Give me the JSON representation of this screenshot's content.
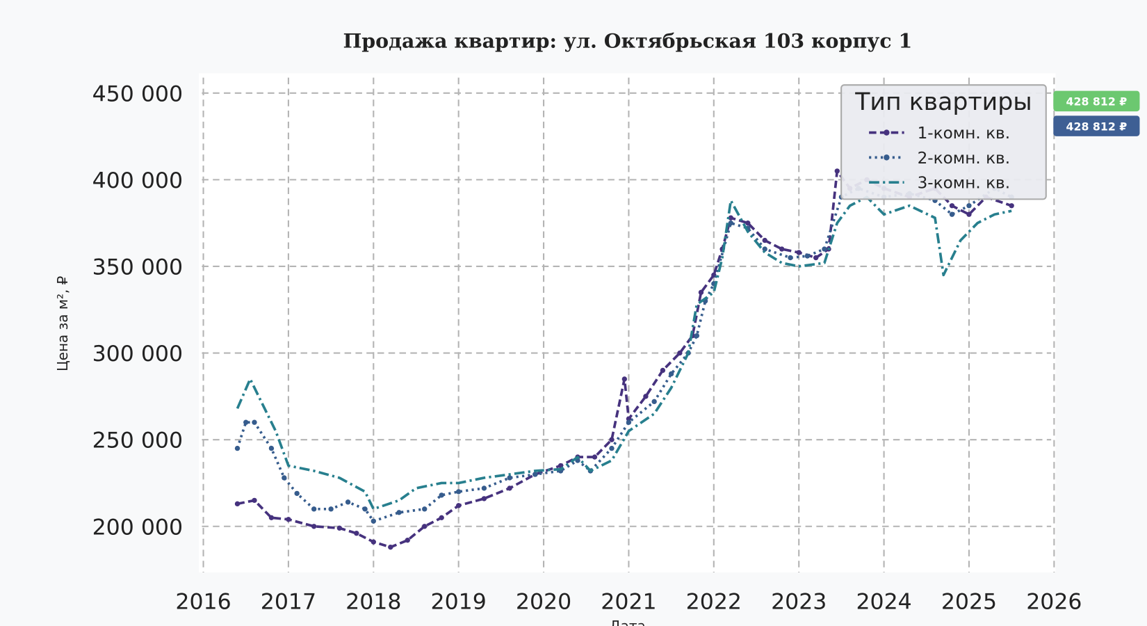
{
  "chart_data": {
    "type": "line",
    "title": "Продажа квартир: ул. Октябрьская 103 корпус 1",
    "xlabel": "Дата",
    "ylabel": "Цена за м², ₽",
    "xlim": [
      2016,
      2026
    ],
    "ylim": [
      173400,
      461400
    ],
    "xticks": [
      2016,
      2017,
      2018,
      2019,
      2020,
      2021,
      2022,
      2023,
      2024,
      2025,
      2026
    ],
    "xtick_labels": [
      "2016",
      "2017",
      "2018",
      "2019",
      "2020",
      "2021",
      "2022",
      "2023",
      "2024",
      "2025",
      "2026"
    ],
    "yticks": [
      200000,
      250000,
      300000,
      350000,
      400000,
      450000
    ],
    "ytick_labels": [
      "200 000",
      "250 000",
      "300 000",
      "350 000",
      "400 000",
      "450 000"
    ],
    "grid": true,
    "legend": {
      "title": "Тип квартиры",
      "placement": "top-right"
    },
    "end_labels": [
      {
        "text": "428 812 ₽",
        "color": "#6cc870"
      },
      {
        "text": "428 812 ₽",
        "color": "#3e5f94"
      }
    ],
    "series": [
      {
        "name": "1-комн. кв.",
        "color": "#46327e",
        "style": "dashed-dot-marker",
        "x": [
          2016.4,
          2016.6,
          2016.8,
          2017.0,
          2017.3,
          2017.6,
          2017.8,
          2018.0,
          2018.2,
          2018.4,
          2018.6,
          2018.8,
          2019.0,
          2019.3,
          2019.6,
          2019.9,
          2020.2,
          2020.4,
          2020.6,
          2020.8,
          2020.95,
          2021.0,
          2021.2,
          2021.4,
          2021.6,
          2021.75,
          2021.85,
          2022.0,
          2022.1,
          2022.2,
          2022.4,
          2022.6,
          2022.8,
          2023.0,
          2023.2,
          2023.35,
          2023.45,
          2023.6,
          2023.8,
          2024.0,
          2024.3,
          2024.6,
          2024.8,
          2025.0,
          2025.2,
          2025.5
        ],
        "y": [
          213000,
          215000,
          205000,
          204000,
          200000,
          199000,
          196000,
          191000,
          188000,
          192000,
          200000,
          205000,
          212000,
          216000,
          222000,
          230000,
          235000,
          240000,
          240000,
          250000,
          285000,
          262000,
          275000,
          290000,
          300000,
          310000,
          335000,
          345000,
          360000,
          378000,
          375000,
          365000,
          360000,
          358000,
          355000,
          360000,
          405000,
          395000,
          400000,
          395000,
          390000,
          395000,
          385000,
          380000,
          390000,
          385000
        ]
      },
      {
        "name": "2-комн. кв.",
        "color": "#365c8d",
        "style": "dotted-marker",
        "x": [
          2016.4,
          2016.5,
          2016.6,
          2016.8,
          2016.95,
          2017.1,
          2017.3,
          2017.5,
          2017.7,
          2017.9,
          2018.0,
          2018.3,
          2018.6,
          2018.8,
          2019.0,
          2019.3,
          2019.6,
          2019.9,
          2020.2,
          2020.4,
          2020.55,
          2020.8,
          2021.0,
          2021.3,
          2021.5,
          2021.7,
          2021.8,
          2021.9,
          2022.0,
          2022.2,
          2022.4,
          2022.6,
          2022.9,
          2023.1,
          2023.3,
          2023.5,
          2023.7,
          2024.0,
          2024.3,
          2024.6,
          2024.8,
          2025.0,
          2025.3,
          2025.5
        ],
        "y": [
          245000,
          260000,
          260000,
          245000,
          228000,
          219000,
          210000,
          210000,
          214000,
          210000,
          203000,
          208000,
          210000,
          218000,
          220000,
          222000,
          228000,
          230000,
          232000,
          238000,
          232000,
          245000,
          260000,
          272000,
          288000,
          300000,
          310000,
          330000,
          340000,
          375000,
          372000,
          360000,
          355000,
          356000,
          360000,
          390000,
          395000,
          390000,
          392000,
          388000,
          380000,
          385000,
          395000,
          390000
        ]
      },
      {
        "name": "3-комн. кв.",
        "color": "#277f8e",
        "style": "dashdot",
        "x": [
          2016.4,
          2016.55,
          2016.7,
          2016.85,
          2017.0,
          2017.3,
          2017.6,
          2017.9,
          2018.0,
          2018.3,
          2018.5,
          2018.8,
          2019.0,
          2019.3,
          2019.6,
          2019.9,
          2020.2,
          2020.4,
          2020.55,
          2020.8,
          2021.0,
          2021.3,
          2021.5,
          2021.7,
          2021.8,
          2022.0,
          2022.1,
          2022.2,
          2022.4,
          2022.6,
          2022.8,
          2023.0,
          2023.3,
          2023.45,
          2023.6,
          2023.8,
          2024.0,
          2024.3,
          2024.6,
          2024.7,
          2024.9,
          2025.1,
          2025.3,
          2025.5
        ],
        "y": [
          268000,
          285000,
          270000,
          255000,
          235000,
          232000,
          228000,
          220000,
          210000,
          215000,
          222000,
          225000,
          225000,
          228000,
          230000,
          232000,
          233000,
          240000,
          232000,
          238000,
          255000,
          265000,
          280000,
          300000,
          328000,
          335000,
          355000,
          388000,
          370000,
          358000,
          352000,
          350000,
          352000,
          375000,
          385000,
          390000,
          380000,
          385000,
          378000,
          345000,
          365000,
          375000,
          380000,
          382000
        ]
      }
    ]
  }
}
